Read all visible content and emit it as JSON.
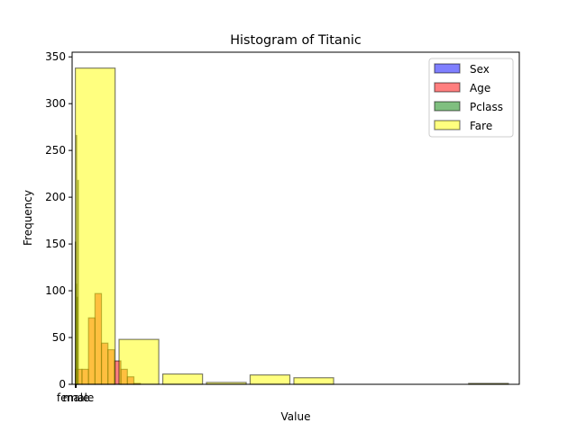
{
  "chart_data": {
    "type": "bar",
    "title": "Histogram of Titanic",
    "xlabel": "Value",
    "ylabel": "Frequency",
    "xlim": [
      -3.8,
      520.5
    ],
    "ylim": [
      0,
      355
    ],
    "yticks": [
      0,
      50,
      100,
      150,
      200,
      250,
      300,
      350
    ],
    "xtick_labels": [
      {
        "label": "female",
        "x": 0
      },
      {
        "label": "male",
        "x": 1
      }
    ],
    "grid": false,
    "legend_position": "top-right",
    "series": [
      {
        "name": "Sex",
        "color": "#0000ff",
        "bins": [
          {
            "x0": -0.05,
            "x1": 0.05,
            "count": 152
          },
          {
            "x0": 0.95,
            "x1": 1.05,
            "count": 266
          }
        ]
      },
      {
        "name": "Age",
        "color": "#ff0000",
        "bins": [
          {
            "x0": 0.2,
            "x1": 7.8,
            "count": 16
          },
          {
            "x0": 7.8,
            "x1": 15.4,
            "count": 16
          },
          {
            "x0": 15.4,
            "x1": 23.0,
            "count": 71
          },
          {
            "x0": 23.0,
            "x1": 30.6,
            "count": 97
          },
          {
            "x0": 30.6,
            "x1": 38.2,
            "count": 44
          },
          {
            "x0": 38.2,
            "x1": 45.8,
            "count": 37
          },
          {
            "x0": 45.8,
            "x1": 53.4,
            "count": 25
          },
          {
            "x0": 53.4,
            "x1": 61.0,
            "count": 16
          },
          {
            "x0": 61.0,
            "x1": 68.6,
            "count": 8
          },
          {
            "x0": 68.6,
            "x1": 76.2,
            "count": 1
          }
        ]
      },
      {
        "name": "Pclass",
        "color": "#008000",
        "bins": [
          {
            "x0": 0.9,
            "x1": 1.1,
            "count": 107
          },
          {
            "x0": 1.9,
            "x1": 2.1,
            "count": 93
          },
          {
            "x0": 2.9,
            "x1": 3.1,
            "count": 218
          }
        ]
      },
      {
        "name": "Fare",
        "color": "#ffff00",
        "bins": [
          {
            "x0": 0,
            "x1": 46.6,
            "count": 338
          },
          {
            "x0": 51.2,
            "x1": 97.8,
            "count": 48
          },
          {
            "x0": 102.5,
            "x1": 149.1,
            "count": 11
          },
          {
            "x0": 153.7,
            "x1": 200.3,
            "count": 2
          },
          {
            "x0": 204.9,
            "x1": 251.5,
            "count": 10
          },
          {
            "x0": 256.2,
            "x1": 302.8,
            "count": 7
          },
          {
            "x0": 307.4,
            "x1": 354.0,
            "count": 0
          },
          {
            "x0": 358.6,
            "x1": 405.2,
            "count": 0
          },
          {
            "x0": 409.9,
            "x1": 456.5,
            "count": 0
          },
          {
            "x0": 461.1,
            "x1": 507.7,
            "count": 1
          }
        ]
      }
    ]
  }
}
